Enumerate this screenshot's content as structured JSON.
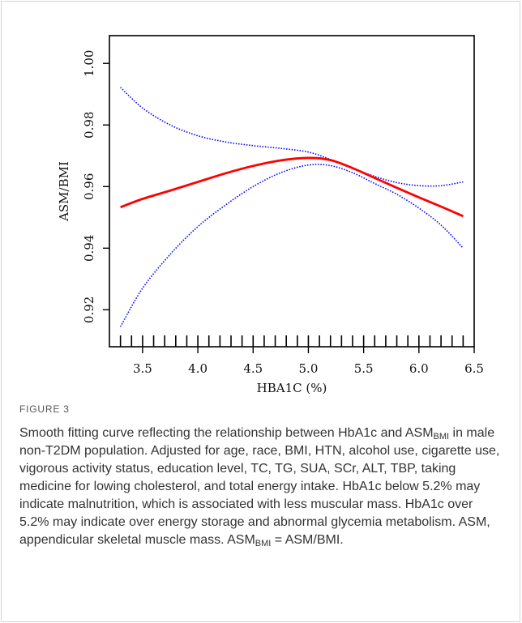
{
  "figure": {
    "label": "FIGURE 3",
    "caption": {
      "part1": "Smooth fitting curve reflecting the relationship between HbA1c and ",
      "asm_base": "ASM",
      "asm_sub": "BMI",
      "part2": " in male non-T2DM population. Adjusted for age, race, BMI, HTN, alcohol use, cigarette use, vigorous activity status, education level, TC, TG, SUA, SCr, ALT, TBP, taking medicine for lowing cholesterol, and total energy intake. HbA1c below 5.2% may indicate malnutrition, which is associated with less muscular mass. HbA1c over 5.2% may indicate over energy storage and abnormal glycemia metabolism. ASM, appendicular skeletal muscle mass. ",
      "part3": " = ASM/BMI."
    }
  },
  "chart_data": {
    "type": "line",
    "xlabel": "HBA1C (%)",
    "ylabel": "ASM/BMI",
    "xlim": [
      3.2,
      6.5
    ],
    "ylim": [
      0.908,
      1.009
    ],
    "x_ticks": [
      3.5,
      4.0,
      4.5,
      5.0,
      5.5,
      6.0,
      6.5
    ],
    "x_tick_labels": [
      "3.5",
      "4.0",
      "4.5",
      "5.0",
      "5.5",
      "6.0",
      "6.5"
    ],
    "y_ticks": [
      0.92,
      0.94,
      0.96,
      0.98,
      1.0
    ],
    "y_tick_labels": [
      "0.92",
      "0.94",
      "0.96",
      "0.98",
      "1.00"
    ],
    "rug_x": [
      3.3,
      3.4,
      3.5,
      3.6,
      3.7,
      3.8,
      3.9,
      4.0,
      4.1,
      4.2,
      4.3,
      4.4,
      4.5,
      4.6,
      4.7,
      4.8,
      4.9,
      5.0,
      5.1,
      5.2,
      5.3,
      5.4,
      5.5,
      5.6,
      5.7,
      5.8,
      5.9,
      6.0,
      6.1,
      6.2,
      6.3,
      6.4
    ],
    "series": [
      {
        "role": "fit",
        "color": "#ff0000",
        "style": "solid",
        "x": [
          3.3,
          3.5,
          3.75,
          4.0,
          4.25,
          4.5,
          4.75,
          5.0,
          5.2,
          5.4,
          5.6,
          5.8,
          6.0,
          6.2,
          6.4
        ],
        "y": [
          0.9533,
          0.956,
          0.9587,
          0.9615,
          0.9643,
          0.9667,
          0.9685,
          0.9693,
          0.9686,
          0.966,
          0.9628,
          0.9596,
          0.9565,
          0.9535,
          0.9504
        ]
      },
      {
        "role": "upper-ci",
        "color": "#0000ff",
        "style": "dotted",
        "x": [
          3.3,
          3.5,
          3.75,
          4.0,
          4.25,
          4.5,
          4.75,
          5.0,
          5.2,
          5.4,
          5.6,
          5.8,
          6.0,
          6.2,
          6.4
        ],
        "y": [
          0.9922,
          0.9855,
          0.98,
          0.9765,
          0.9745,
          0.9733,
          0.9724,
          0.9712,
          0.9688,
          0.966,
          0.9633,
          0.9613,
          0.9603,
          0.9603,
          0.9615
        ]
      },
      {
        "role": "lower-ci",
        "color": "#0000ff",
        "style": "dotted",
        "x": [
          3.3,
          3.5,
          3.75,
          4.0,
          4.25,
          4.5,
          4.75,
          5.0,
          5.2,
          5.4,
          5.6,
          5.8,
          6.0,
          6.2,
          6.4
        ],
        "y": [
          0.9145,
          0.927,
          0.938,
          0.947,
          0.954,
          0.96,
          0.9645,
          0.967,
          0.9668,
          0.9645,
          0.961,
          0.9575,
          0.953,
          0.9475,
          0.94
        ]
      }
    ]
  }
}
